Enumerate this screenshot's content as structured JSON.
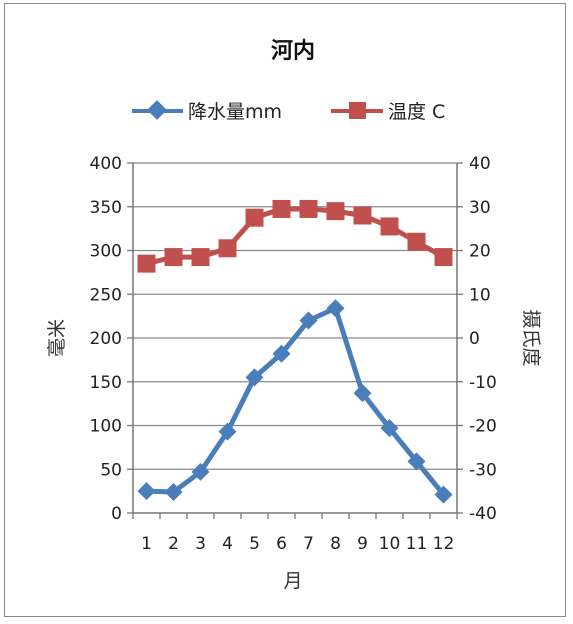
{
  "chart_data": {
    "type": "line",
    "title": "河内",
    "xlabel": "月",
    "ylabel_left": "毫米",
    "ylabel_right": "摄氏度",
    "categories": [
      "1",
      "2",
      "3",
      "4",
      "5",
      "6",
      "7",
      "8",
      "9",
      "10",
      "11",
      "12"
    ],
    "ylim_left": [
      0,
      400
    ],
    "ylim_right": [
      -40,
      40
    ],
    "yticks_left": [
      "0",
      "50",
      "100",
      "150",
      "200",
      "250",
      "300",
      "350",
      "400"
    ],
    "yticks_right": [
      "-40",
      "-30",
      "-20",
      "-10",
      "0",
      "10",
      "20",
      "30",
      "40"
    ],
    "grid": true,
    "legend_position": "top",
    "series": [
      {
        "name": "降水量mm",
        "axis": "left",
        "color": "#4a7ebb",
        "marker": "diamond",
        "values": [
          25,
          24,
          47,
          93,
          155,
          182,
          220,
          234,
          137,
          97,
          59,
          21
        ]
      },
      {
        "name": "温度 C",
        "axis": "right",
        "color": "#c0504d",
        "marker": "square",
        "values": [
          17,
          18.5,
          18.5,
          20.5,
          27.5,
          29.5,
          29.5,
          29,
          28,
          25.5,
          22,
          18.5
        ]
      }
    ]
  }
}
